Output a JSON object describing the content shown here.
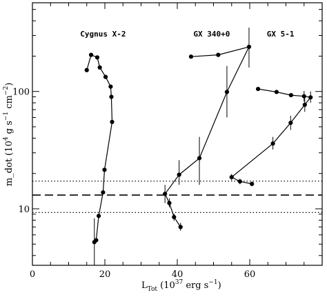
{
  "chart_data": {
    "type": "scatter",
    "x_axis": {
      "range": [
        0,
        80
      ],
      "ticks": [
        0,
        20,
        40,
        60
      ],
      "label_main": "L",
      "label_sub": "Tot",
      "label_paren_open": " (10",
      "label_sup": "37",
      "label_rest": " erg s",
      "label_sup2": "−1",
      "label_close": ")"
    },
    "y_axis": {
      "scale": "log",
      "range": [
        3.3,
        570
      ],
      "major_ticks": [
        10,
        100
      ],
      "minor_ticks": [
        4,
        5,
        6,
        7,
        8,
        9,
        20,
        30,
        40,
        50,
        60,
        70,
        80,
        90,
        200,
        300,
        400,
        500
      ],
      "label_part1": "m_dot (10",
      "label_sup1": "4",
      "label_part2": " g s",
      "label_sup2": "−1",
      "label_part3": " cm",
      "label_sup3": "−2",
      "label_part4": ")"
    },
    "reference_lines": [
      {
        "y": 13.1,
        "style": "dashed"
      },
      {
        "y": 17.2,
        "style": "dotted"
      },
      {
        "y": 9.3,
        "style": "dotted"
      }
    ],
    "annotations": [
      {
        "text": "Cygnus X-2",
        "x": 19.5,
        "y": 310
      },
      {
        "text": "GX 340+0",
        "x": 49.5,
        "y": 310
      },
      {
        "text": "GX 5-1",
        "x": 68.5,
        "y": 310
      }
    ],
    "series": [
      {
        "points": [
          {
            "x": 15.0,
            "y": 152
          },
          {
            "x": 16.2,
            "y": 205
          },
          {
            "x": 17.9,
            "y": 195
          },
          {
            "x": 18.6,
            "y": 160
          },
          {
            "x": 20.2,
            "y": 133
          },
          {
            "x": 21.6,
            "y": 110
          },
          {
            "x": 21.8,
            "y": 90
          },
          {
            "x": 22.0,
            "y": 55
          },
          {
            "x": 19.9,
            "y": 21.5
          },
          {
            "x": 19.5,
            "y": 13.8
          },
          {
            "x": 18.3,
            "y": 8.7
          },
          {
            "x": 17.6,
            "y": 5.4
          },
          {
            "x": 17.1,
            "y": 5.2
          }
        ],
        "errors": [
          {
            "i": 12,
            "lo": 3.3,
            "hi": 8.3
          }
        ]
      },
      {
        "points": [
          {
            "x": 43.8,
            "y": 198
          },
          {
            "x": 51.3,
            "y": 205
          },
          {
            "x": 59.8,
            "y": 240
          },
          {
            "x": 53.7,
            "y": 99
          },
          {
            "x": 46.1,
            "y": 27
          },
          {
            "x": 40.5,
            "y": 19.5
          },
          {
            "x": 36.6,
            "y": 13.4
          },
          {
            "x": 37.8,
            "y": 11.2
          },
          {
            "x": 39.1,
            "y": 8.5
          },
          {
            "x": 40.9,
            "y": 7.0
          }
        ],
        "errors": [
          {
            "i": 2,
            "lo": 160,
            "hi": 350
          },
          {
            "i": 3,
            "lo": 60,
            "hi": 165
          },
          {
            "i": 4,
            "lo": 16,
            "hi": 41
          },
          {
            "i": 5,
            "lo": 16,
            "hi": 26
          },
          {
            "i": 6,
            "lo": 11.2,
            "hi": 16
          },
          {
            "i": 7,
            "lo": 10.3,
            "hi": 12.3
          },
          {
            "i": 8,
            "lo": 7.9,
            "hi": 9.1
          },
          {
            "i": 9,
            "lo": 6.5,
            "hi": 7.6
          }
        ]
      },
      {
        "points": [
          {
            "x": 62.3,
            "y": 105
          },
          {
            "x": 67.4,
            "y": 99
          },
          {
            "x": 71.4,
            "y": 93
          },
          {
            "x": 75.0,
            "y": 91
          },
          {
            "x": 76.8,
            "y": 89
          },
          {
            "x": 75.2,
            "y": 77
          },
          {
            "x": 71.3,
            "y": 54
          },
          {
            "x": 66.4,
            "y": 36
          },
          {
            "x": 55.0,
            "y": 18.6
          },
          {
            "x": 57.3,
            "y": 17.1
          },
          {
            "x": 60.6,
            "y": 16.3
          }
        ],
        "errors": [
          {
            "i": 3,
            "lo": 82,
            "hi": 101
          },
          {
            "i": 4,
            "lo": 80,
            "hi": 100
          },
          {
            "i": 5,
            "lo": 67,
            "hi": 88
          },
          {
            "i": 6,
            "lo": 47,
            "hi": 62
          },
          {
            "i": 7,
            "lo": 32,
            "hi": 41
          },
          {
            "i": 8,
            "lo": 17.5,
            "hi": 19.8
          },
          {
            "i": 9,
            "lo": 16.2,
            "hi": 18.0
          },
          {
            "i": 10,
            "lo": 15.6,
            "hi": 17.0
          }
        ]
      }
    ]
  }
}
